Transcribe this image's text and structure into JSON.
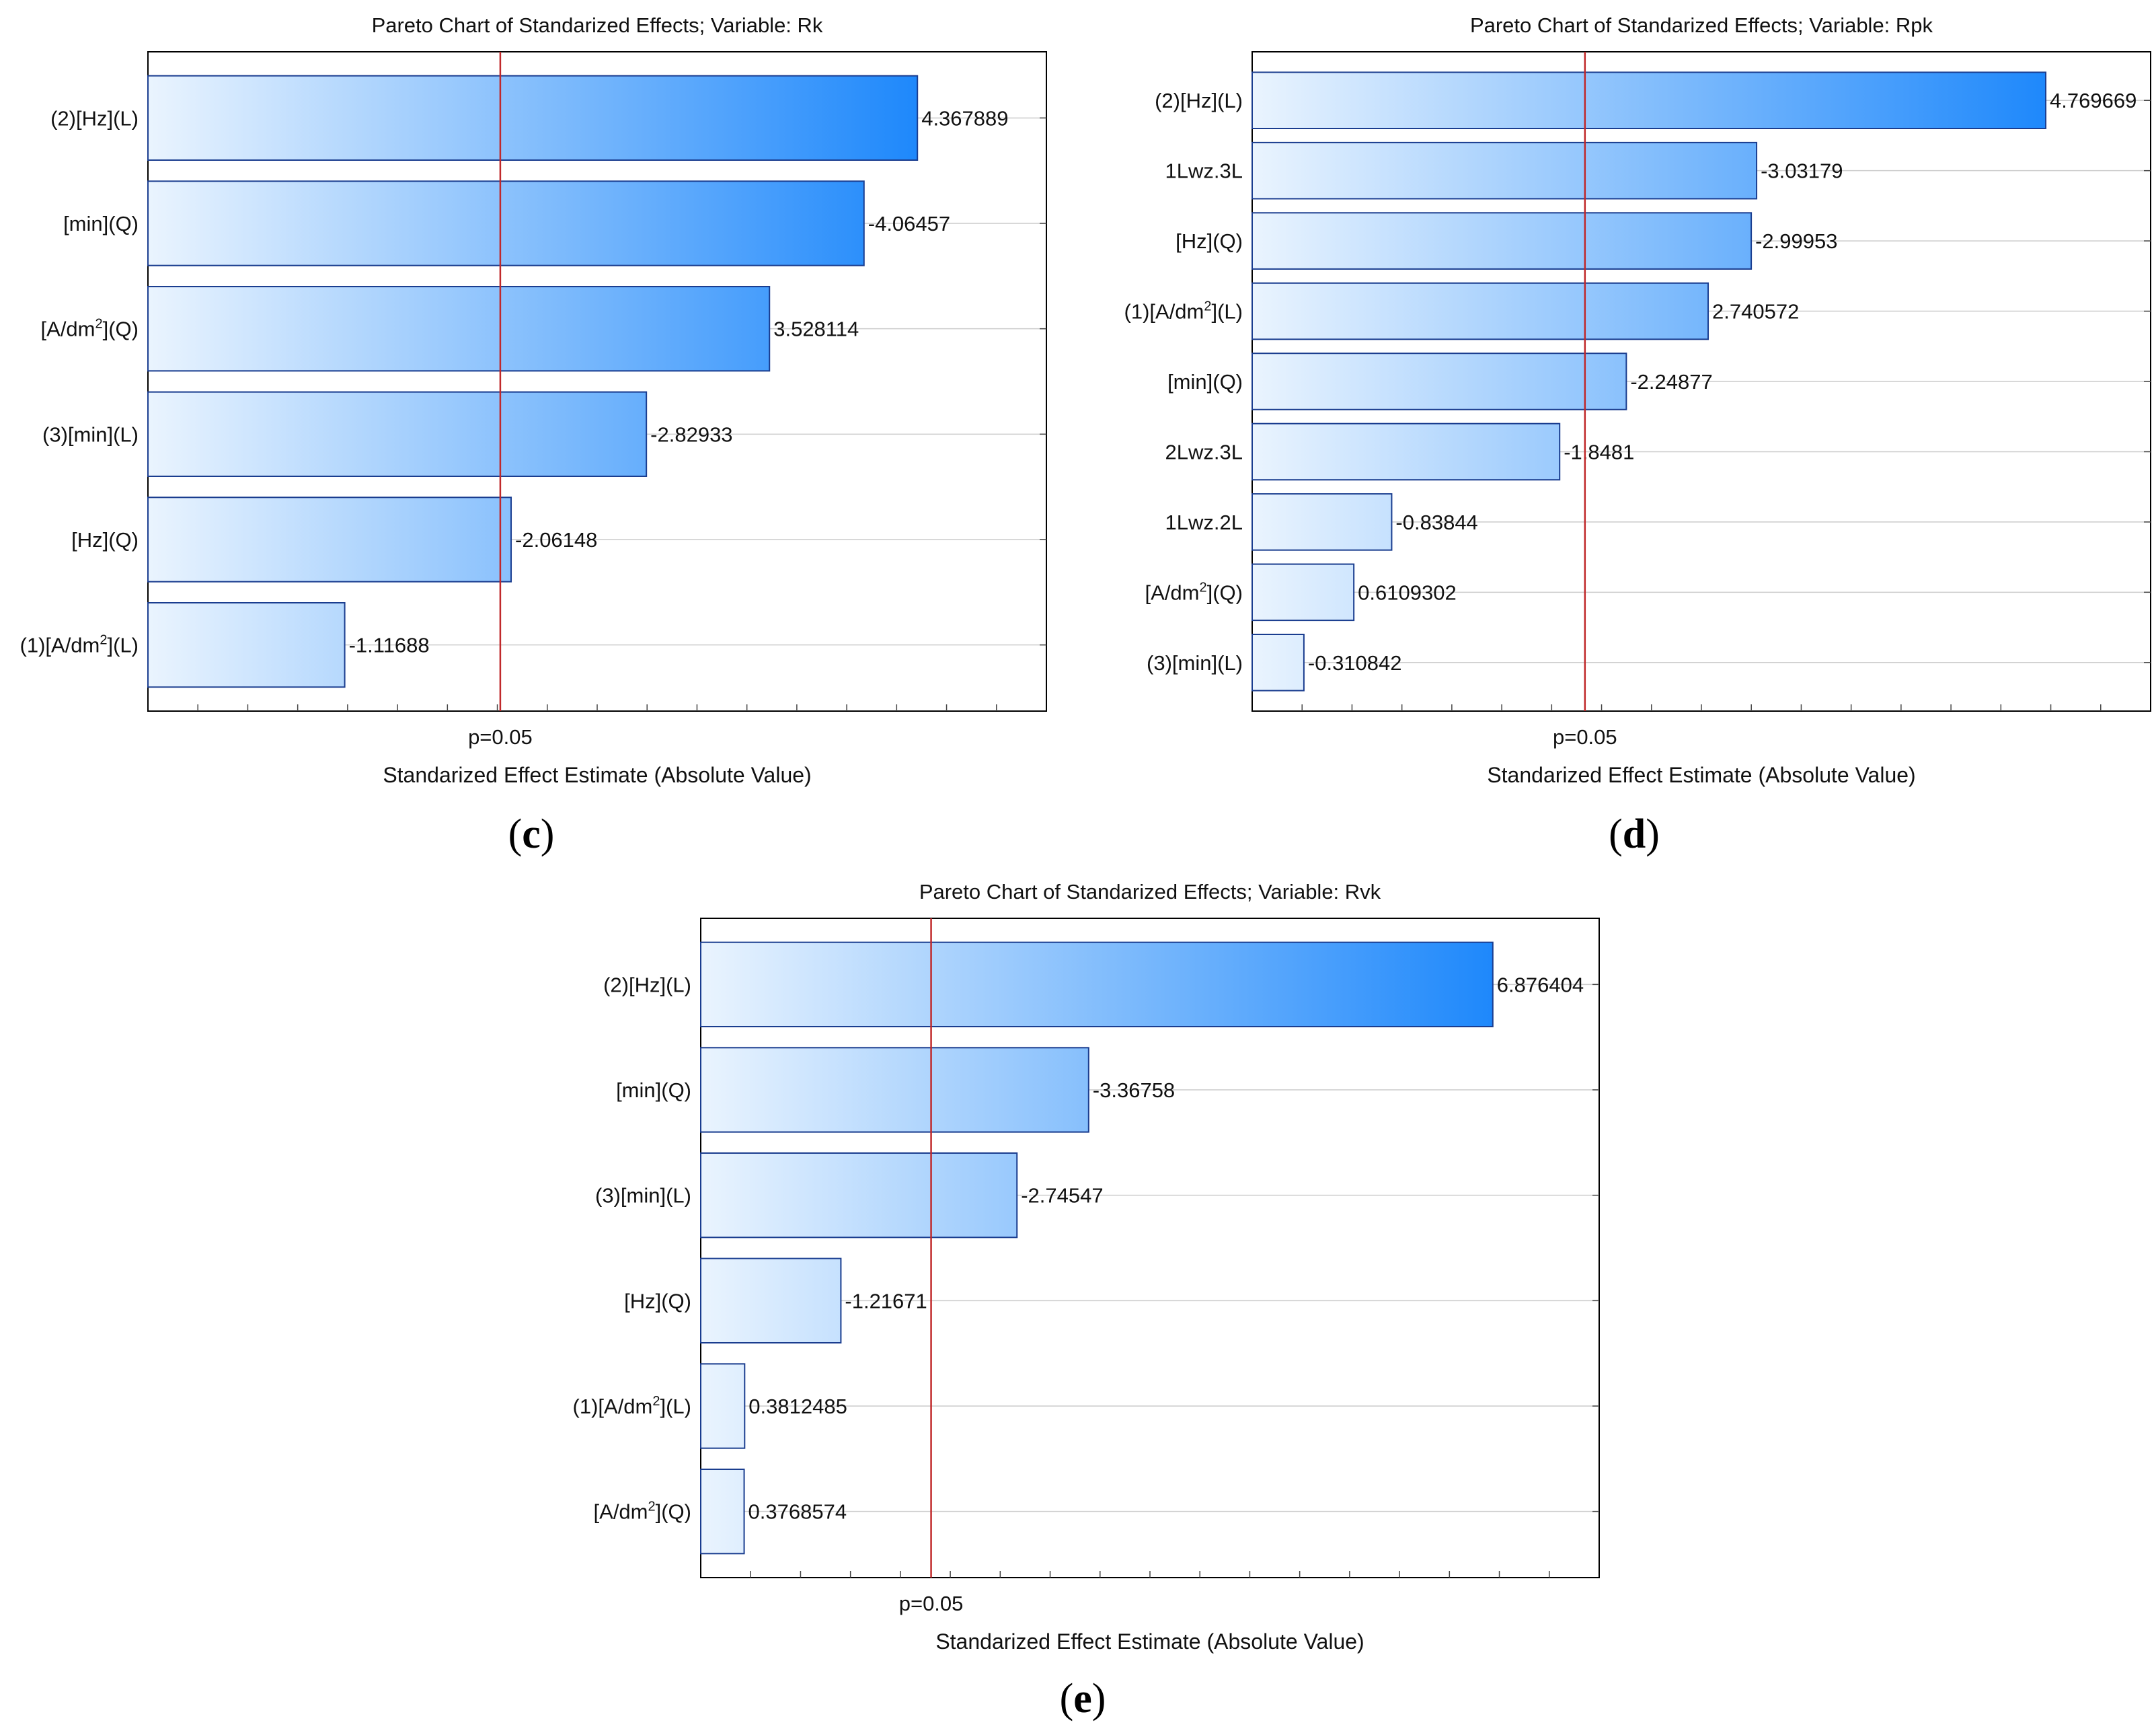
{
  "figure_labels": {
    "c": "c",
    "d": "d",
    "e": "e"
  },
  "colors": {
    "bar_gradient_start": "#eaf4fe",
    "bar_gradient_end": "#1e88fb",
    "bar_stroke": "#1a3d8f",
    "significance_line": "#c0292b",
    "axis": "#000000",
    "grid": "#cccccc"
  },
  "chart_data": [
    {
      "id": "c",
      "type": "bar",
      "orientation": "horizontal",
      "title": "Pareto Chart of Standarized Effects; Variable: Rk",
      "xlabel": "Standarized Effect Estimate (Absolute Value)",
      "threshold_label": "p=0.05",
      "threshold": 2.0,
      "xlim": [
        0,
        5.1
      ],
      "categories": [
        "(2)[Hz](L)",
        "[min](Q)",
        "[A/dm²](Q)",
        "(3)[min](L)",
        "[Hz](Q)",
        "(1)[A/dm²](L)"
      ],
      "values": [
        4.367889,
        -4.06457,
        3.528114,
        -2.82933,
        -2.06148,
        -1.11688
      ],
      "value_labels": [
        "4.367889",
        "-4.06457",
        "3.528114",
        "-2.82933",
        "-2.06148",
        "-1.11688"
      ]
    },
    {
      "id": "d",
      "type": "bar",
      "orientation": "horizontal",
      "title": "Pareto Chart of Standarized Effects; Variable: Rpk",
      "xlabel": "Standarized Effect Estimate (Absolute Value)",
      "threshold_label": "p=0.05",
      "threshold": 2.0,
      "xlim": [
        0,
        5.4
      ],
      "categories": [
        "(2)[Hz](L)",
        "1Lwz.3L",
        "[Hz](Q)",
        "(1)[A/dm²](L)",
        "[min](Q)",
        "2Lwz.3L",
        "1Lwz.2L",
        "[A/dm²](Q)",
        "(3)[min](L)"
      ],
      "values": [
        4.769669,
        -3.03179,
        -2.99953,
        2.740572,
        -2.24877,
        -1.8481,
        -0.83844,
        0.6109302,
        -0.310842
      ],
      "value_labels": [
        "4.769669",
        "-3.03179",
        "-2.99953",
        "2.740572",
        "-2.24877",
        "-1.8481",
        "-0.83844",
        "0.6109302",
        "-0.310842"
      ]
    },
    {
      "id": "e",
      "type": "bar",
      "orientation": "horizontal",
      "title": "Pareto Chart of Standarized Effects; Variable: Rvk",
      "xlabel": "Standarized Effect Estimate (Absolute Value)",
      "threshold_label": "p=0.05",
      "threshold": 2.0,
      "xlim": [
        0,
        7.8
      ],
      "categories": [
        "(2)[Hz](L)",
        "[min](Q)",
        "(3)[min](L)",
        "[Hz](Q)",
        "(1)[A/dm²](L)",
        "[A/dm²](Q)"
      ],
      "values": [
        6.876404,
        -3.36758,
        -2.74547,
        -1.21671,
        0.3812485,
        0.3768574
      ],
      "value_labels": [
        "6.876404",
        "-3.36758",
        "-2.74547",
        "-1.21671",
        "0.3812485",
        "0.3768574"
      ]
    }
  ]
}
